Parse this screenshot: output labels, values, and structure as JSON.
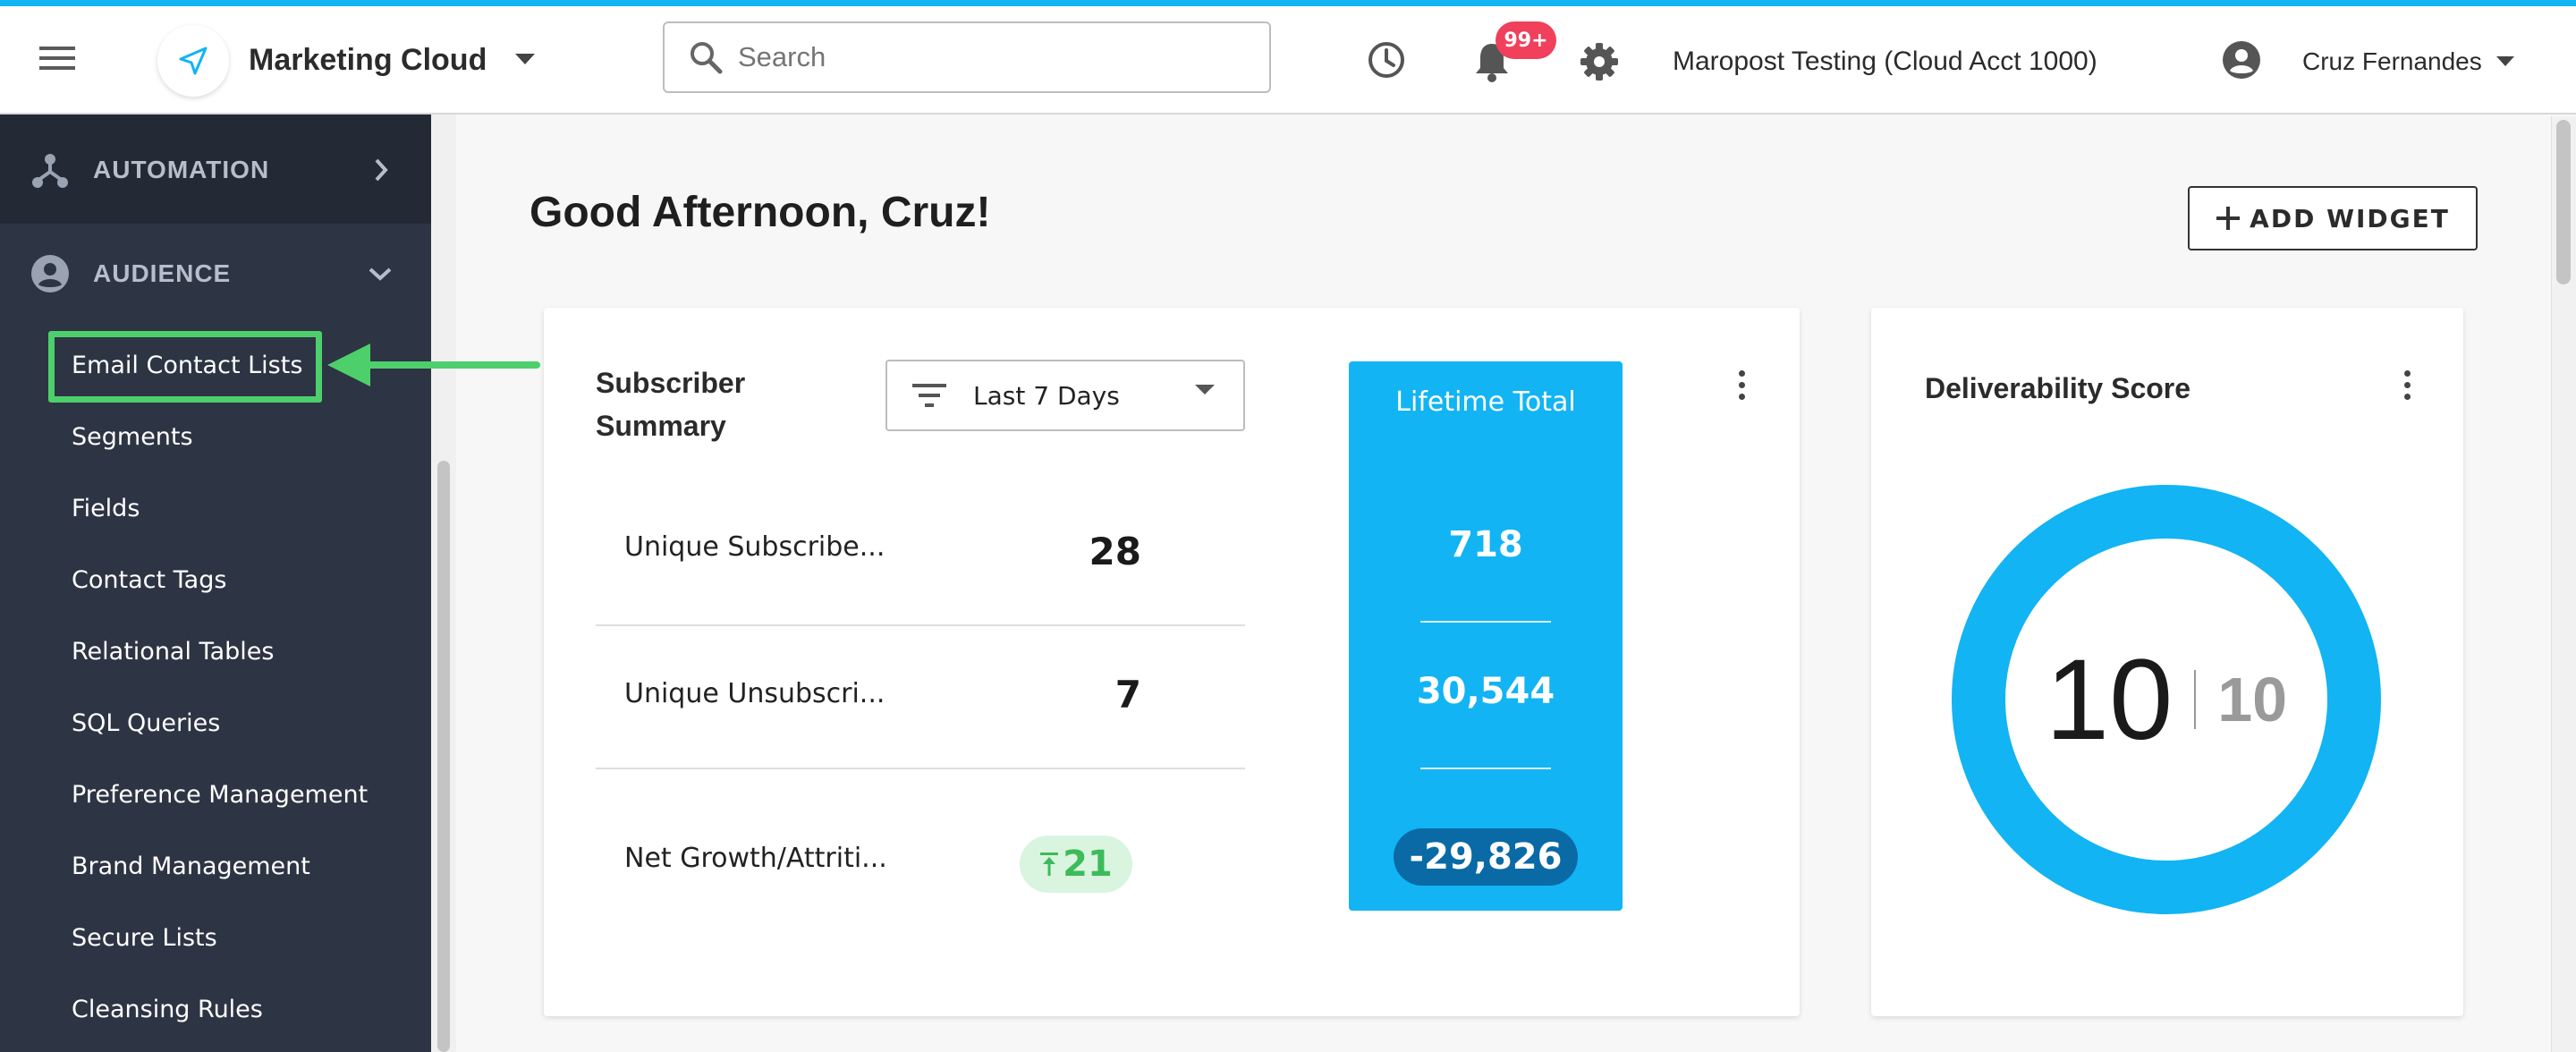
{
  "app": {
    "title": "Marketing Cloud",
    "account": "Maropost Testing (Cloud Acct 1000)",
    "user": "Cruz Fernandes",
    "notification_badge": "99+"
  },
  "search": {
    "placeholder": "Search"
  },
  "sidebar": {
    "sections": [
      {
        "label": "AUTOMATION",
        "icon": "automation-icon",
        "state": "collapsed"
      },
      {
        "label": "AUDIENCE",
        "icon": "person-circle-icon",
        "state": "expanded"
      }
    ],
    "audience_items": [
      "Email Contact Lists",
      "Segments",
      "Fields",
      "Contact Tags",
      "Relational Tables",
      "SQL Queries",
      "Preference Management",
      "Brand Management",
      "Secure Lists",
      "Cleansing Rules"
    ],
    "highlighted_item": "Email Contact Lists"
  },
  "main": {
    "greeting": "Good Afternoon, Cruz!",
    "add_widget_label": "ADD WIDGET"
  },
  "subscriber_summary": {
    "title_line1": "Subscriber",
    "title_line2": "Summary",
    "range_selected": "Last 7 Days",
    "rows": [
      {
        "label": "Unique Subscribe...",
        "value": "28"
      },
      {
        "label": "Unique Unsubscri...",
        "value": "7"
      },
      {
        "label": "Net Growth/Attriti...",
        "value": "21",
        "trend": "up"
      }
    ],
    "lifetime": {
      "title": "Lifetime Total",
      "values": [
        "718",
        "30,544",
        "-29,826"
      ]
    }
  },
  "deliverability": {
    "title": "Deliverability Score",
    "score": "10",
    "max": "10",
    "score_fraction": 1.0
  },
  "colors": {
    "accent": "#12b4f3",
    "sidebar_bg": "#2d3443",
    "highlight_green": "#4dcf6c",
    "badge_red": "#f0405b",
    "growth_bg": "#d9f5df",
    "growth_text": "#3dbb5a",
    "pill_dark": "#0a6aa6"
  }
}
